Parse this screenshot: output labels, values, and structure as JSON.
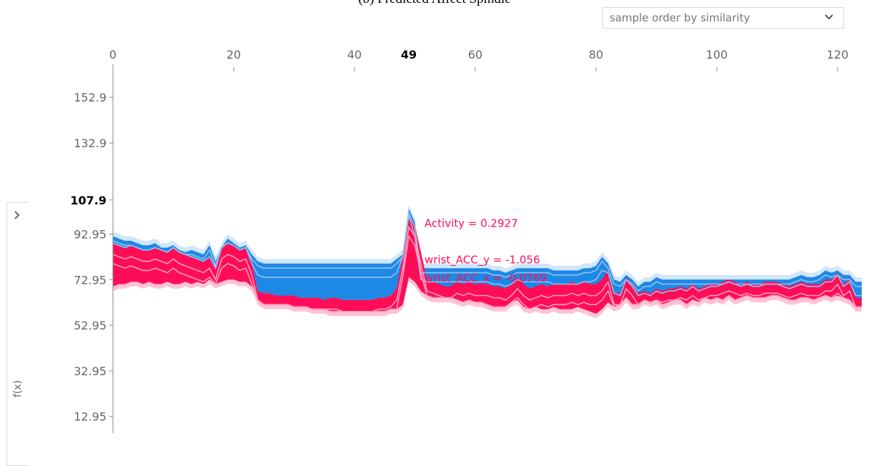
{
  "caption": "(b) Predicted Affect Spindle",
  "order_select": {
    "value": "sample order by similarity",
    "icon": "chevron-down-icon"
  },
  "side_panel": {
    "toggle_icon": "chevron-right-icon",
    "ylabel": "f(x)"
  },
  "colors": {
    "positive": "#ff0d57",
    "positive_light": "#ffc3d5",
    "negative": "#1e88e5",
    "negative_light": "#d1e6fa",
    "axis": "#8a8a8a",
    "tick_text": "#666666",
    "label_text": "#ff0d57"
  },
  "chart_data": {
    "type": "area",
    "title": "",
    "xlabel": "",
    "ylabel": "f(x)",
    "x_ticks": [
      0,
      20,
      40,
      60,
      80,
      100,
      120
    ],
    "highlight_x": 49,
    "y_ticks": [
      "152.9",
      "132.9",
      "107.9",
      "92.95",
      "72.95",
      "52.95",
      "32.95",
      "12.95"
    ],
    "highlight_y_label": "107.9",
    "xlim": [
      0,
      124.5
    ],
    "ylim": [
      0,
      165
    ],
    "base_value": 72.95,
    "x": [
      0,
      1,
      2,
      3,
      4,
      5,
      6,
      7,
      8,
      9,
      10,
      11,
      12,
      13,
      14,
      15,
      16,
      17,
      18,
      19,
      20,
      21,
      22,
      23,
      24,
      25,
      26,
      27,
      28,
      29,
      30,
      31,
      32,
      33,
      34,
      35,
      36,
      37,
      38,
      39,
      40,
      41,
      42,
      43,
      44,
      45,
      46,
      47,
      48,
      49,
      50,
      51,
      52,
      53,
      54,
      55,
      56,
      57,
      58,
      59,
      60,
      61,
      62,
      63,
      64,
      65,
      66,
      67,
      68,
      69,
      70,
      71,
      72,
      73,
      74,
      75,
      76,
      77,
      78,
      79,
      80,
      81,
      82,
      83,
      84,
      85,
      86,
      87,
      88,
      89,
      90,
      91,
      92,
      93,
      94,
      95,
      96,
      97,
      98,
      99,
      100,
      101,
      102,
      103,
      104,
      105,
      106,
      107,
      108,
      109,
      110,
      111,
      112,
      113,
      114,
      115,
      116,
      117,
      118,
      119,
      120,
      121,
      122,
      123,
      124
    ],
    "f_x": [
      88,
      87,
      86,
      87,
      86,
      85,
      85,
      86,
      85,
      84,
      86,
      84,
      83,
      82,
      81,
      80,
      82,
      76,
      86,
      88,
      87,
      85,
      86,
      78,
      67,
      66,
      66,
      65,
      65,
      65,
      65,
      64,
      64,
      64,
      64,
      63,
      64,
      64,
      63,
      63,
      63,
      63,
      63,
      63,
      64,
      64,
      65,
      68,
      82,
      100,
      88,
      73,
      72,
      71,
      70,
      69,
      69,
      71,
      70,
      71,
      70,
      70,
      70,
      69,
      69,
      68,
      70,
      73,
      70,
      68,
      69,
      70,
      69,
      70,
      70,
      70,
      71,
      70,
      71,
      70,
      70,
      72,
      76,
      66,
      66,
      73,
      70,
      66,
      67,
      66,
      68,
      67,
      68,
      68,
      69,
      68,
      70,
      68,
      69,
      70,
      70,
      71,
      72,
      71,
      70,
      71,
      70,
      70,
      71,
      71,
      71,
      70,
      69,
      70,
      71,
      70,
      70,
      70,
      72,
      72,
      75,
      70,
      72,
      64,
      64
    ],
    "positive_top": [
      89,
      88,
      87,
      88,
      87,
      86,
      86,
      87,
      86,
      85,
      87,
      85,
      84,
      83,
      82,
      81,
      83,
      78,
      87,
      89,
      88,
      86,
      87,
      80,
      68,
      67,
      67,
      66,
      66,
      66,
      66,
      65,
      65,
      65,
      65,
      64,
      65,
      65,
      64,
      64,
      64,
      64,
      64,
      64,
      65,
      65,
      66,
      69,
      83,
      101,
      97,
      85,
      73,
      72,
      71,
      70,
      70,
      72,
      71,
      72,
      71,
      71,
      71,
      70,
      70,
      69,
      71,
      74,
      71,
      69,
      70,
      71,
      70,
      71,
      71,
      71,
      72,
      71,
      72,
      71,
      71,
      73,
      77,
      67,
      67,
      74,
      71,
      67,
      68,
      67,
      69,
      68,
      69,
      69,
      70,
      69,
      71,
      69,
      70,
      71,
      71,
      72,
      73,
      72,
      71,
      72,
      71,
      71,
      72,
      72,
      72,
      71,
      70,
      71,
      72,
      71,
      71,
      71,
      73,
      73,
      76,
      71,
      73,
      65,
      65
    ],
    "lower": [
      68,
      69,
      69,
      70,
      70,
      69,
      70,
      69,
      69,
      70,
      69,
      69,
      70,
      69,
      70,
      69,
      71,
      69,
      70,
      71,
      71,
      70,
      70,
      68,
      62,
      60,
      60,
      60,
      60,
      60,
      59,
      59,
      59,
      58,
      58,
      58,
      57,
      57,
      57,
      57,
      57,
      57,
      57,
      57,
      57,
      57,
      58,
      58,
      60,
      72,
      70,
      66,
      64,
      63,
      63,
      63,
      63,
      62,
      61,
      62,
      61,
      61,
      60,
      59,
      59,
      59,
      61,
      62,
      59,
      58,
      59,
      58,
      58,
      59,
      58,
      58,
      58,
      59,
      58,
      57,
      56,
      58,
      61,
      59,
      60,
      63,
      60,
      60,
      62,
      61,
      62,
      60,
      61,
      62,
      62,
      60,
      62,
      61,
      63,
      62,
      63,
      62,
      64,
      62,
      63,
      64,
      63,
      63,
      63,
      64,
      64,
      63,
      62,
      62,
      63,
      63,
      62,
      63,
      64,
      63,
      64,
      63,
      62,
      59,
      59
    ],
    "negative_bottom": [
      89,
      88,
      87,
      88,
      87,
      86,
      86,
      87,
      86,
      85,
      87,
      85,
      84,
      83,
      82,
      81,
      83,
      78,
      87,
      89,
      88,
      86,
      87,
      80,
      68,
      67,
      67,
      66,
      66,
      66,
      66,
      65,
      65,
      65,
      65,
      64,
      65,
      65,
      64,
      64,
      64,
      64,
      64,
      64,
      65,
      65,
      66,
      69,
      83,
      101,
      88,
      73,
      72,
      71,
      70,
      69,
      69,
      71,
      70,
      71,
      70,
      70,
      70,
      69,
      69,
      68,
      70,
      73,
      70,
      68,
      69,
      70,
      69,
      70,
      70,
      70,
      71,
      70,
      71,
      70,
      70,
      72,
      76,
      66,
      66,
      73,
      70,
      66,
      67,
      66,
      68,
      67,
      68,
      68,
      69,
      68,
      70,
      68,
      69,
      70,
      70,
      71,
      72,
      71,
      70,
      71,
      70,
      70,
      71,
      71,
      71,
      70,
      69,
      70,
      71,
      70,
      70,
      70,
      72,
      72,
      75,
      70,
      72,
      64,
      64
    ],
    "upper": [
      94,
      93,
      92,
      92,
      91,
      90,
      90,
      91,
      89,
      89,
      90,
      88,
      87,
      88,
      87,
      86,
      90,
      83,
      89,
      93,
      91,
      89,
      90,
      86,
      83,
      82,
      82,
      82,
      82,
      82,
      82,
      82,
      82,
      82,
      82,
      82,
      82,
      82,
      82,
      82,
      82,
      82,
      82,
      82,
      82,
      82,
      82,
      84,
      86,
      106,
      100,
      80,
      80,
      80,
      80,
      80,
      80,
      80,
      80,
      80,
      80,
      80,
      80,
      79,
      79,
      78,
      79,
      80,
      80,
      80,
      80,
      80,
      80,
      79,
      79,
      79,
      79,
      79,
      80,
      80,
      81,
      85,
      82,
      75,
      74,
      77,
      75,
      72,
      74,
      74,
      76,
      75,
      75,
      75,
      75,
      75,
      75,
      75,
      75,
      75,
      75,
      75,
      75,
      75,
      75,
      75,
      75,
      75,
      75,
      75,
      75,
      75,
      75,
      76,
      77,
      76,
      76,
      77,
      79,
      78,
      79,
      77,
      77,
      74,
      74
    ],
    "labels": [
      {
        "text": "Activity = 0.2927",
        "sign": "positive"
      },
      {
        "text": "wrist_ACC_y = -1.056",
        "sign": "positive"
      },
      {
        "text": "wrist_ACC_x = -0.0769",
        "sign": "positive"
      }
    ]
  }
}
